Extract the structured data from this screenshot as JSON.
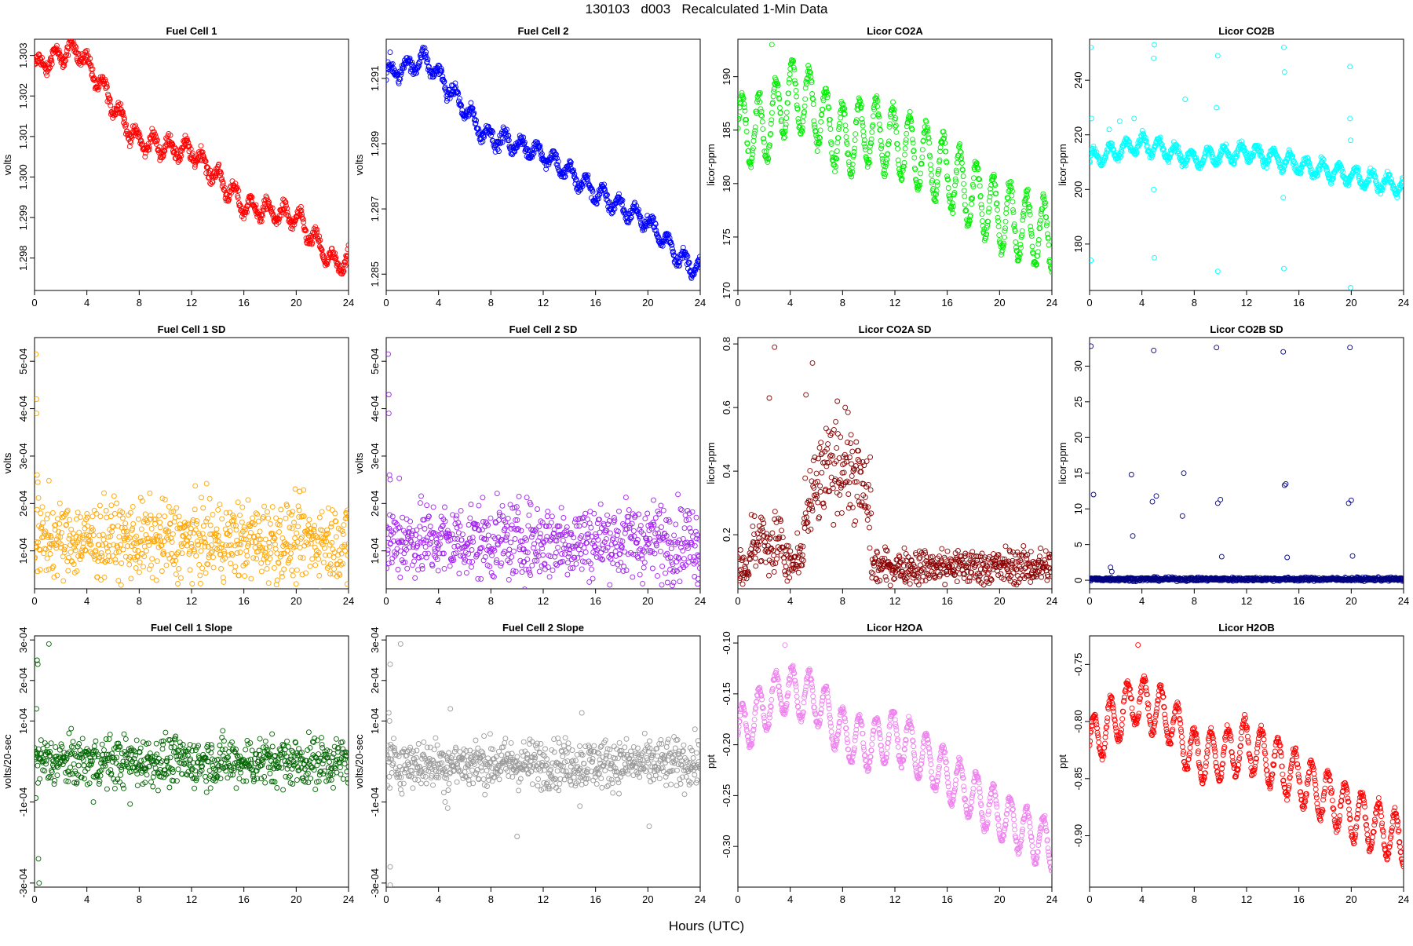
{
  "figure": {
    "title": "130103   d003   Recalculated 1-Min Data",
    "xlabel": "Hours (UTC)"
  },
  "chart_data": [
    {
      "type": "scatter",
      "title": "Fuel Cell 1",
      "ylabel": "volts",
      "color": "#ff0000",
      "xlim": [
        0,
        24
      ],
      "ylim": [
        1.2972,
        1.3034
      ],
      "xticks": [
        0,
        4,
        8,
        12,
        16,
        20,
        24
      ],
      "yticks": [
        1.298,
        1.299,
        1.3,
        1.301,
        1.302,
        1.303
      ],
      "ytick_labels": [
        "1.298",
        "1.299",
        "1.300",
        "1.301",
        "1.302",
        "1.303"
      ],
      "pattern": "smooth",
      "trend": [
        [
          0,
          1.3027
        ],
        [
          3.2,
          1.3032
        ],
        [
          7.8,
          1.3009
        ],
        [
          12.2,
          1.3006
        ],
        [
          16,
          1.2993
        ],
        [
          20,
          1.299
        ],
        [
          23,
          1.2978
        ],
        [
          24,
          1.298
        ]
      ],
      "osc_amp": 0.00022,
      "period": 1.25,
      "noise": 8e-05,
      "outliers": []
    },
    {
      "type": "scatter",
      "title": "Fuel Cell 2",
      "ylabel": "volts",
      "color": "#0000ff",
      "xlim": [
        0,
        24
      ],
      "ylim": [
        1.2845,
        1.2922
      ],
      "xticks": [
        0,
        4,
        8,
        12,
        16,
        20,
        24
      ],
      "yticks": [
        1.285,
        1.287,
        1.289,
        1.291
      ],
      "ytick_labels": [
        "1.285",
        "1.287",
        "1.289",
        "1.291"
      ],
      "pattern": "smooth",
      "trend": [
        [
          0,
          1.2911
        ],
        [
          3,
          1.2916
        ],
        [
          7.5,
          1.2893
        ],
        [
          12,
          1.2887
        ],
        [
          16,
          1.2875
        ],
        [
          20,
          1.2866
        ],
        [
          23,
          1.2853
        ],
        [
          24,
          1.2852
        ]
      ],
      "osc_amp": 0.00025,
      "period": 1.25,
      "noise": 9e-05,
      "outliers": [
        [
          0.3,
          1.2918
        ]
      ]
    },
    {
      "type": "scatter",
      "title": "Licor CO2A",
      "ylabel": "licor-ppm",
      "color": "#00ee00",
      "xlim": [
        0,
        24
      ],
      "ylim": [
        170,
        193.5
      ],
      "xticks": [
        0,
        4,
        8,
        12,
        16,
        20,
        24
      ],
      "yticks": [
        170,
        175,
        180,
        185,
        190
      ],
      "ytick_labels": [
        "170",
        "175",
        "180",
        "185",
        "190"
      ],
      "pattern": "smooth",
      "trend": [
        [
          0,
          185
        ],
        [
          2,
          185
        ],
        [
          4,
          188.5
        ],
        [
          6,
          187
        ],
        [
          8,
          184
        ],
        [
          10,
          185
        ],
        [
          12,
          184
        ],
        [
          16,
          181
        ],
        [
          20,
          177
        ],
        [
          24,
          175
        ]
      ],
      "osc_amp": 3.2,
      "period": 1.28,
      "noise": 0.3,
      "outliers": [
        [
          2.6,
          193
        ]
      ]
    },
    {
      "type": "scatter",
      "title": "Licor CO2B",
      "ylabel": "licor-ppm",
      "color": "#00ffff",
      "xlim": [
        0,
        24
      ],
      "ylim": [
        163,
        255
      ],
      "xticks": [
        0,
        4,
        8,
        12,
        16,
        20,
        24
      ],
      "yticks": [
        180,
        200,
        220,
        240
      ],
      "ytick_labels": [
        "180",
        "200",
        "220",
        "240"
      ],
      "pattern": "smooth",
      "trend": [
        [
          0,
          211
        ],
        [
          4,
          217
        ],
        [
          8,
          211
        ],
        [
          12,
          214
        ],
        [
          16,
          209
        ],
        [
          20,
          205
        ],
        [
          24,
          201
        ]
      ],
      "osc_amp": 3,
      "period": 1.25,
      "noise": 0.8,
      "outliers": [
        [
          0.1,
          252
        ],
        [
          0.1,
          174
        ],
        [
          0.15,
          226
        ],
        [
          4.95,
          253
        ],
        [
          4.9,
          248
        ],
        [
          4.95,
          175
        ],
        [
          4.9,
          200
        ],
        [
          9.8,
          249
        ],
        [
          9.7,
          230
        ],
        [
          9.8,
          170
        ],
        [
          14.85,
          252
        ],
        [
          14.9,
          243
        ],
        [
          14.85,
          171
        ],
        [
          14.8,
          197
        ],
        [
          19.9,
          245
        ],
        [
          19.9,
          226
        ],
        [
          19.95,
          164
        ],
        [
          19.95,
          218
        ],
        [
          7.3,
          233
        ],
        [
          3.4,
          226
        ],
        [
          1.5,
          222
        ],
        [
          2.3,
          225
        ]
      ]
    },
    {
      "type": "scatter",
      "title": "Fuel Cell 1 SD",
      "ylabel": "volts",
      "color": "#ffa500",
      "xlim": [
        0,
        24
      ],
      "ylim": [
        2e-05,
        0.00055
      ],
      "xticks": [
        0,
        4,
        8,
        12,
        16,
        20,
        24
      ],
      "yticks": [
        0.0001,
        0.0002,
        0.0003,
        0.0004,
        0.0005
      ],
      "ytick_labels": [
        "1e-04",
        "2e-04",
        "3e-04",
        "4e-04",
        "5e-04"
      ],
      "pattern": "band",
      "center": 0.000122,
      "spread": 4e-05,
      "outliers": [
        [
          0.1,
          0.000515
        ],
        [
          0.15,
          0.00042
        ],
        [
          0.15,
          0.00039
        ],
        [
          0.2,
          0.00026
        ],
        [
          0.25,
          0.000245
        ],
        [
          1.1,
          0.000248
        ],
        [
          23.9,
          3e-05
        ]
      ]
    },
    {
      "type": "scatter",
      "title": "Fuel Cell 2 SD",
      "ylabel": "volts",
      "color": "#a020f0",
      "xlim": [
        0,
        24
      ],
      "ylim": [
        2e-05,
        0.00055
      ],
      "xticks": [
        0,
        4,
        8,
        12,
        16,
        20,
        24
      ],
      "yticks": [
        0.0001,
        0.0002,
        0.0003,
        0.0004,
        0.0005
      ],
      "ytick_labels": [
        "1e-04",
        "2e-04",
        "3e-04",
        "4e-04",
        "5e-04"
      ],
      "pattern": "band",
      "center": 0.000122,
      "spread": 4e-05,
      "outliers": [
        [
          0.15,
          0.000515
        ],
        [
          0.2,
          0.00043
        ],
        [
          0.2,
          0.00039
        ],
        [
          0.25,
          0.00026
        ],
        [
          0.3,
          0.00025
        ],
        [
          1.0,
          0.000253
        ],
        [
          23.8,
          3e-05
        ]
      ]
    },
    {
      "type": "scatter",
      "title": "Licor CO2A SD",
      "ylabel": "licor-ppm",
      "color": "#8b0000",
      "xlim": [
        0,
        24
      ],
      "ylim": [
        0.03,
        0.82
      ],
      "xticks": [
        0,
        4,
        8,
        12,
        16,
        20,
        24
      ],
      "yticks": [
        0.2,
        0.4,
        0.6,
        0.8
      ],
      "ytick_labels": [
        "0.2",
        "0.4",
        "0.6",
        "0.8"
      ],
      "pattern": "co2asd",
      "outliers": [
        [
          2.8,
          0.79
        ],
        [
          5.7,
          0.74
        ],
        [
          2.4,
          0.63
        ],
        [
          5.2,
          0.64
        ],
        [
          8.2,
          0.6
        ],
        [
          7.6,
          0.62
        ]
      ]
    },
    {
      "type": "scatter",
      "title": "Licor CO2B SD",
      "ylabel": "licor-ppm",
      "color": "#000080",
      "xlim": [
        0,
        24
      ],
      "ylim": [
        -1.2,
        34
      ],
      "xticks": [
        0,
        4,
        8,
        12,
        16,
        20,
        24
      ],
      "yticks": [
        0,
        5,
        10,
        15,
        20,
        25,
        30
      ],
      "ytick_labels": [
        "0",
        "5",
        "10",
        "15",
        "20",
        "25",
        "30"
      ],
      "pattern": "band",
      "center": 0.15,
      "spread": 0.12,
      "outliers": [
        [
          0.1,
          32.8
        ],
        [
          4.9,
          32.2
        ],
        [
          9.7,
          32.6
        ],
        [
          14.8,
          32
        ],
        [
          19.9,
          32.6
        ],
        [
          0.3,
          12
        ],
        [
          3.2,
          14.8
        ],
        [
          3.3,
          6.2
        ],
        [
          4.8,
          11
        ],
        [
          5.1,
          11.8
        ],
        [
          7.2,
          15
        ],
        [
          7.1,
          9
        ],
        [
          9.8,
          10.8
        ],
        [
          10,
          11.3
        ],
        [
          10.1,
          3.3
        ],
        [
          14.9,
          13.3
        ],
        [
          15,
          13.5
        ],
        [
          15.1,
          3.2
        ],
        [
          19.8,
          10.8
        ],
        [
          20,
          11.2
        ],
        [
          20.1,
          3.4
        ],
        [
          1.6,
          1.8
        ],
        [
          1.7,
          1.2
        ]
      ]
    },
    {
      "type": "scatter",
      "title": "Fuel Cell 1 Slope",
      "ylabel": "volts/20-sec",
      "color": "#006400",
      "xlim": [
        0,
        24
      ],
      "ylim": [
        -0.00031,
        0.00031
      ],
      "xticks": [
        0,
        4,
        8,
        12,
        16,
        20,
        24
      ],
      "yticks": [
        -0.0003,
        -0.0001,
        0.0001,
        0.0002,
        0.0003
      ],
      "ytick_labels": [
        "-3e-04",
        "-1e-04",
        "1e-04",
        "2e-04",
        "3e-04"
      ],
      "pattern": "band",
      "center": 0.0,
      "spread": 3e-05,
      "outliers": [
        [
          0.2,
          0.00025
        ],
        [
          0.25,
          0.00024
        ],
        [
          1.1,
          0.00029
        ],
        [
          0.15,
          0.00013
        ],
        [
          0.1,
          -9e-05
        ],
        [
          0.3,
          -0.00024
        ],
        [
          0.35,
          -0.0003
        ],
        [
          4.5,
          -0.0001
        ],
        [
          7.3,
          -0.000105
        ]
      ]
    },
    {
      "type": "scatter",
      "title": "Fuel Cell 2 Slope",
      "ylabel": "volts/20-sec",
      "color": "#999999",
      "xlim": [
        0,
        24
      ],
      "ylim": [
        -0.00031,
        0.00031
      ],
      "xticks": [
        0,
        4,
        8,
        12,
        16,
        20,
        24
      ],
      "yticks": [
        -0.0003,
        -0.0001,
        0.0001,
        0.0002,
        0.0003
      ],
      "ytick_labels": [
        "-3e-04",
        "-1e-04",
        "1e-04",
        "2e-04",
        "3e-04"
      ],
      "pattern": "band",
      "center": -5e-06,
      "spread": 3e-05,
      "outliers": [
        [
          0.3,
          0.00024
        ],
        [
          1.1,
          0.00029
        ],
        [
          0.2,
          0.00012
        ],
        [
          0.25,
          0.0001
        ],
        [
          0.3,
          -0.00026
        ],
        [
          0.3,
          -0.000305
        ],
        [
          4.5,
          -0.0001
        ],
        [
          4.7,
          -0.000115
        ],
        [
          4.9,
          0.00013
        ],
        [
          10,
          -0.000185
        ],
        [
          14.8,
          -0.00011
        ],
        [
          14.95,
          0.00012
        ],
        [
          20.1,
          -0.00016
        ]
      ]
    },
    {
      "type": "scatter",
      "title": "Licor H2OA",
      "ylabel": "ppt",
      "color": "#ee82ee",
      "xlim": [
        0,
        24
      ],
      "ylim": [
        -0.34,
        -0.093
      ],
      "xticks": [
        0,
        4,
        8,
        12,
        16,
        20,
        24
      ],
      "yticks": [
        -0.3,
        -0.25,
        -0.2,
        -0.15,
        -0.1
      ],
      "ytick_labels": [
        "-0.30",
        "-0.25",
        "-0.20",
        "-0.15",
        "-0.10"
      ],
      "pattern": "smooth",
      "trend": [
        [
          0,
          -0.19
        ],
        [
          3.5,
          -0.145
        ],
        [
          6,
          -0.155
        ],
        [
          8,
          -0.19
        ],
        [
          10,
          -0.2
        ],
        [
          12,
          -0.19
        ],
        [
          16,
          -0.23
        ],
        [
          20,
          -0.27
        ],
        [
          24,
          -0.3
        ]
      ],
      "osc_amp": 0.024,
      "period": 1.28,
      "noise": 0.002,
      "outliers": [
        [
          3.6,
          -0.102
        ]
      ]
    },
    {
      "type": "scatter",
      "title": "Licor H2OB",
      "ylabel": "ppt",
      "color": "#ff0000",
      "xlim": [
        0,
        24
      ],
      "ylim": [
        -0.945,
        -0.725
      ],
      "xticks": [
        0,
        4,
        8,
        12,
        16,
        20,
        24
      ],
      "yticks": [
        -0.9,
        -0.85,
        -0.8,
        -0.75
      ],
      "ytick_labels": [
        "-0.90",
        "-0.85",
        "-0.80",
        "-0.75"
      ],
      "pattern": "smooth",
      "trend": [
        [
          0,
          -0.82
        ],
        [
          3.5,
          -0.78
        ],
        [
          6,
          -0.795
        ],
        [
          8,
          -0.83
        ],
        [
          10,
          -0.83
        ],
        [
          12,
          -0.82
        ],
        [
          16,
          -0.85
        ],
        [
          20,
          -0.88
        ],
        [
          24,
          -0.905
        ]
      ],
      "osc_amp": 0.022,
      "period": 1.28,
      "noise": 0.002,
      "outliers": [
        [
          3.7,
          -0.733
        ]
      ]
    }
  ]
}
